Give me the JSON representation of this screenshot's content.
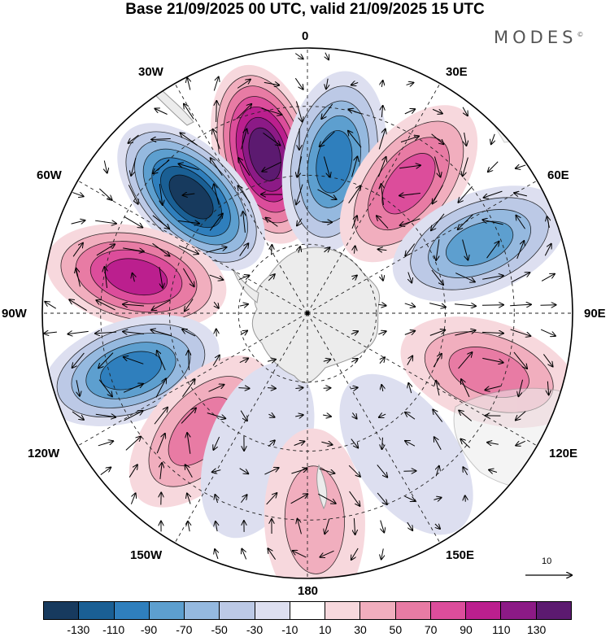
{
  "title": "Base 21/09/2025 00 UTC, valid 21/09/2025 15 UTC",
  "brand": "MODES",
  "brand_mark": "©",
  "longitude_labels": {
    "top": "0",
    "top_left": "30W",
    "top_right": "30E",
    "upper_left": "60W",
    "upper_right": "60E",
    "left": "90W",
    "right": "90E",
    "lower_left": "120W",
    "lower_right": "120E",
    "bottom_left": "150W",
    "bottom_right": "150E",
    "bottom": "180"
  },
  "reference_vector_label": "10",
  "colorbar": {
    "colors": [
      "#173a5e",
      "#1a5f94",
      "#2f7fbd",
      "#5d9fcf",
      "#95b9df",
      "#bcc9e6",
      "#dddff0",
      "#ffffff",
      "#f7d8dd",
      "#f1aebe",
      "#e87ba4",
      "#dc4d9b",
      "#bb1f8e",
      "#8c1a86",
      "#5c1a70"
    ],
    "ticks": [
      "-130",
      "-110",
      "-90",
      "-70",
      "-50",
      "-30",
      "-10",
      "10",
      "30",
      "50",
      "70",
      "90",
      "110",
      "130"
    ]
  },
  "anomaly_centers": [
    {
      "name": "sector-345E",
      "lon": -15,
      "r": 0.62,
      "value": 130
    },
    {
      "name": "sector-15E",
      "lon": 10,
      "r": 0.58,
      "value": -95
    },
    {
      "name": "sector-35E",
      "lon": 38,
      "r": 0.62,
      "value": 80
    },
    {
      "name": "sector-60E",
      "lon": 68,
      "r": 0.7,
      "value": -70
    },
    {
      "name": "sector-45W",
      "lon": -45,
      "r": 0.62,
      "value": -130
    },
    {
      "name": "sector-80W",
      "lon": -78,
      "r": 0.66,
      "value": 105
    },
    {
      "name": "sector-105W",
      "lon": -108,
      "r": 0.7,
      "value": -90
    },
    {
      "name": "sector-135W",
      "lon": -138,
      "r": 0.6,
      "value": 50
    },
    {
      "name": "sector-112E",
      "lon": 108,
      "r": 0.72,
      "value": 50
    },
    {
      "name": "sector-160W",
      "lon": -160,
      "r": 0.55,
      "value": -20
    },
    {
      "name": "sector-180",
      "lon": 178,
      "r": 0.78,
      "value": 40
    },
    {
      "name": "sector-145E",
      "lon": 145,
      "r": 0.65,
      "value": -25
    }
  ]
}
